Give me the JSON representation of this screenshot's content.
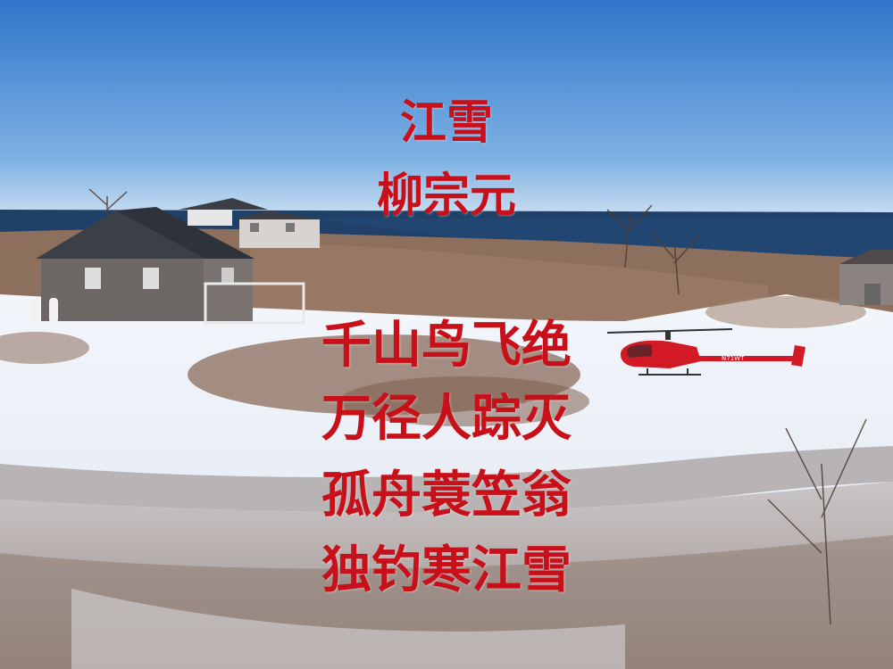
{
  "poem": {
    "title": "江雪",
    "author": "柳宗元",
    "lines": [
      "千山鸟飞绝",
      "万径人踪灭",
      "孤舟蓑笠翁",
      "独钓寒江雪"
    ]
  },
  "helicopter": {
    "registration": "N71WT"
  },
  "colors": {
    "text": "#c8101a",
    "sky_top": "#2f75c9",
    "sky_horizon": "#b9d7ee",
    "sea": "#1d3e66",
    "snow": "#eef2f8",
    "brush": "#8a6a55",
    "helicopter": "#d11a25"
  }
}
